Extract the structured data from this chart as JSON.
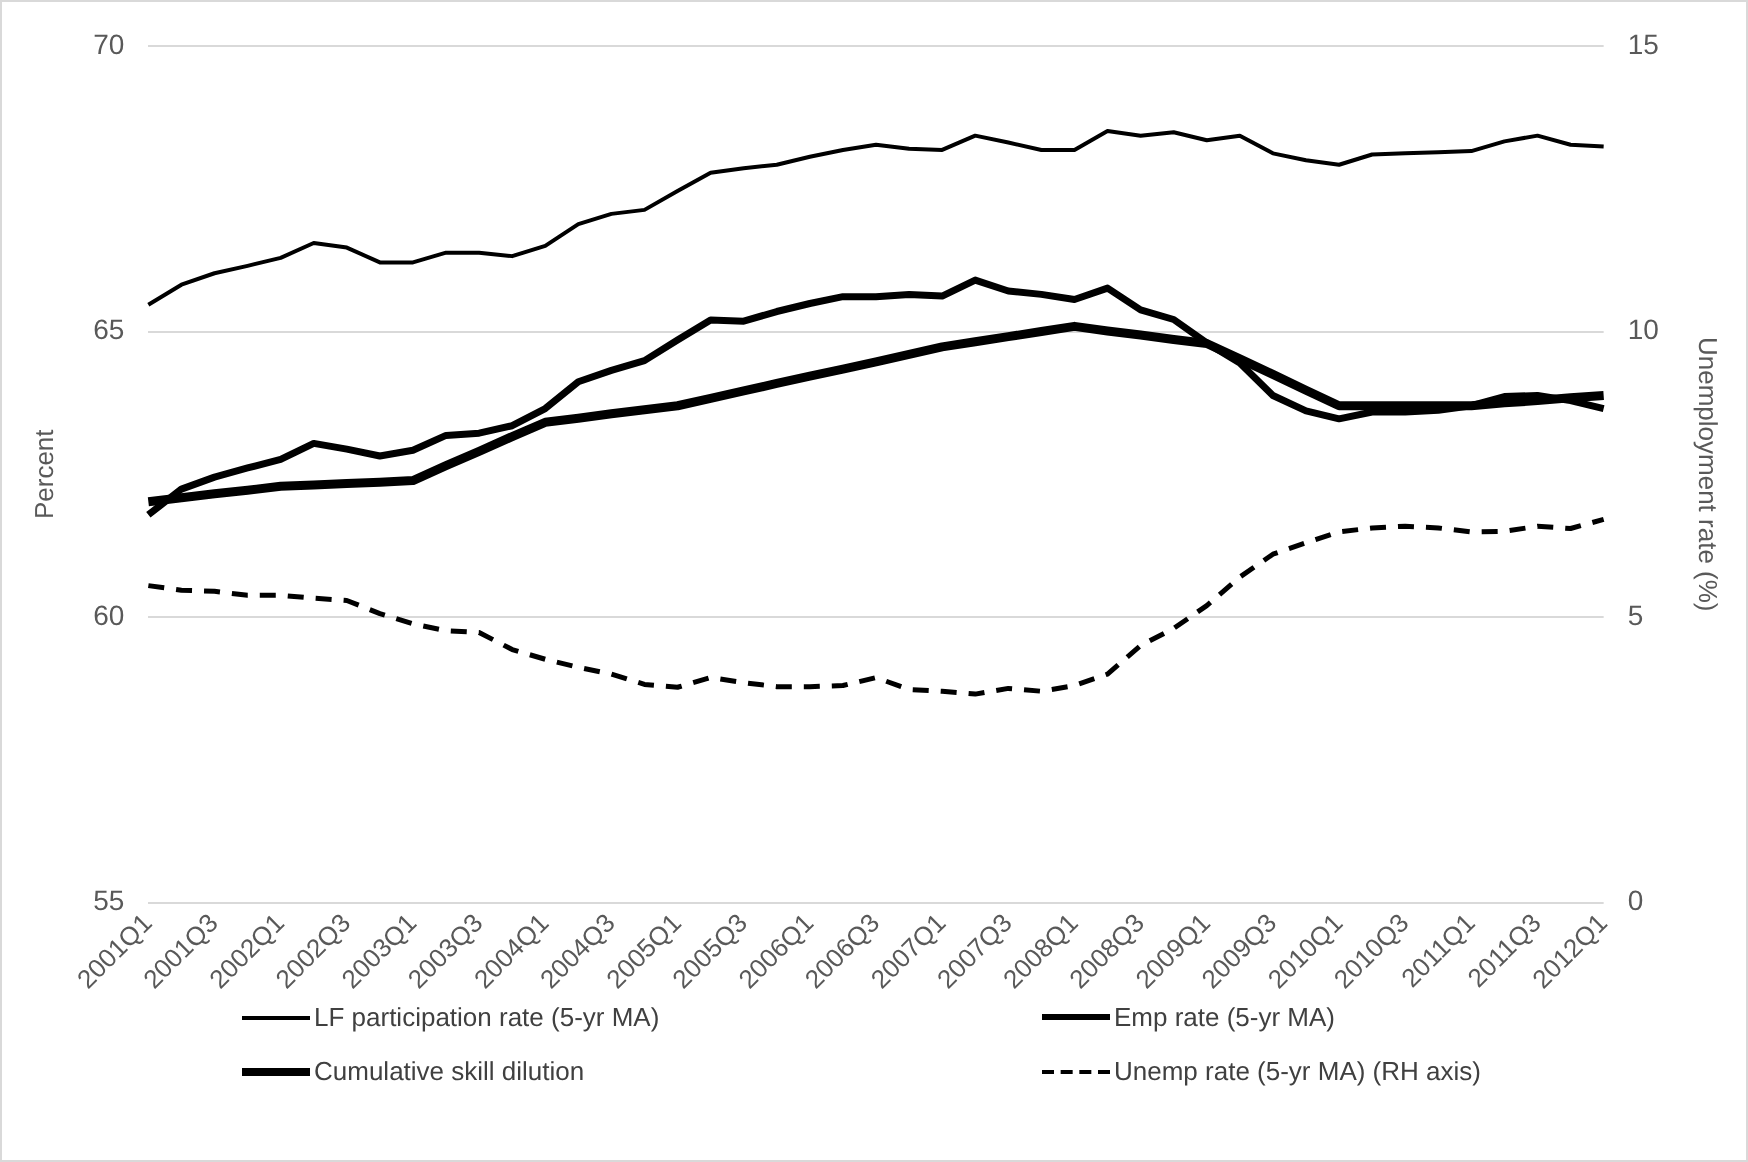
{
  "chart_data": {
    "type": "line",
    "ylabel": "Percent",
    "y2label": "Unemployment rate (%)",
    "categories": [
      "2001Q1",
      null,
      "2001Q3",
      null,
      "2002Q1",
      null,
      "2002Q3",
      null,
      "2003Q1",
      null,
      "2003Q3",
      null,
      "2004Q1",
      null,
      "2004Q3",
      null,
      "2005Q1",
      null,
      "2005Q3",
      null,
      "2006Q1",
      null,
      "2006Q3",
      null,
      "2007Q1",
      null,
      "2007Q3",
      null,
      "2008Q1",
      null,
      "2008Q3",
      null,
      "2009Q1",
      null,
      "2009Q3",
      null,
      "2010Q1",
      null,
      "2010Q3",
      null,
      "2011Q1",
      null,
      "2011Q3",
      null,
      "2012Q1"
    ],
    "series": [
      {
        "name": "LF participation rate (5-yr MA)",
        "color": "#000000",
        "values": [
          65.47,
          65.82,
          66.02,
          66.15,
          66.29,
          66.55,
          66.47,
          66.21,
          66.21,
          66.38,
          66.38,
          66.32,
          66.5,
          66.88,
          67.06,
          67.13,
          67.46,
          67.78,
          67.86,
          67.92,
          68.06,
          68.18,
          68.27,
          68.2,
          68.18,
          68.43,
          68.31,
          68.18,
          68.18,
          68.51,
          68.43,
          68.49,
          68.35,
          68.43,
          68.12,
          68.0,
          67.92,
          68.1,
          68.12,
          68.14,
          68.16,
          68.33,
          68.43,
          68.27,
          68.24
        ]
      },
      {
        "name": "Emp  rate (5-yr MA)",
        "color": "#000000",
        "values": [
          61.79,
          62.24,
          62.45,
          62.61,
          62.76,
          63.04,
          62.94,
          62.82,
          62.92,
          63.18,
          63.22,
          63.35,
          63.65,
          64.12,
          64.32,
          64.49,
          64.85,
          65.2,
          65.18,
          65.35,
          65.49,
          65.61,
          65.61,
          65.65,
          65.62,
          65.9,
          65.71,
          65.65,
          65.56,
          65.76,
          65.38,
          65.21,
          64.8,
          64.45,
          63.88,
          63.61,
          63.47,
          63.59,
          63.59,
          63.62,
          63.7,
          63.86,
          63.88,
          63.79,
          63.65
        ]
      },
      {
        "name": "Cumulative skill dilution",
        "color": "#000000",
        "values": [
          62.02,
          62.09,
          62.16,
          62.22,
          62.29,
          62.31,
          62.34,
          62.36,
          62.39,
          62.65,
          62.9,
          63.16,
          63.41,
          63.48,
          63.56,
          63.63,
          63.7,
          63.83,
          63.96,
          64.09,
          64.22,
          64.34,
          64.47,
          64.6,
          64.73,
          64.82,
          64.91,
          65.0,
          65.09,
          65.01,
          64.94,
          64.86,
          64.79,
          64.52,
          64.25,
          63.97,
          63.7,
          63.7,
          63.7,
          63.7,
          63.7,
          63.75,
          63.79,
          63.84,
          63.88
        ]
      },
      {
        "name": "Unemp rate (5-yr MA) (RH axis)",
        "color": "#000000",
        "axis": "y2",
        "line_style": "dashed",
        "values": [
          5.55,
          5.47,
          5.45,
          5.38,
          5.38,
          5.33,
          5.29,
          5.06,
          4.88,
          4.76,
          4.73,
          4.43,
          4.26,
          4.12,
          4.0,
          3.82,
          3.77,
          3.94,
          3.85,
          3.78,
          3.78,
          3.8,
          3.94,
          3.73,
          3.7,
          3.65,
          3.75,
          3.7,
          3.8,
          4.0,
          4.5,
          4.8,
          5.2,
          5.7,
          6.1,
          6.3,
          6.49,
          6.56,
          6.59,
          6.56,
          6.49,
          6.5,
          6.59,
          6.55,
          6.71
        ]
      }
    ],
    "ylim": [
      55,
      70
    ],
    "yticks": [
      55,
      60,
      65,
      70
    ],
    "y2lim": [
      0,
      15
    ],
    "y2ticks": [
      0,
      5,
      10,
      15
    ],
    "grid": "y",
    "legend": "bottom",
    "marker": "none",
    "line_style": "solid"
  }
}
